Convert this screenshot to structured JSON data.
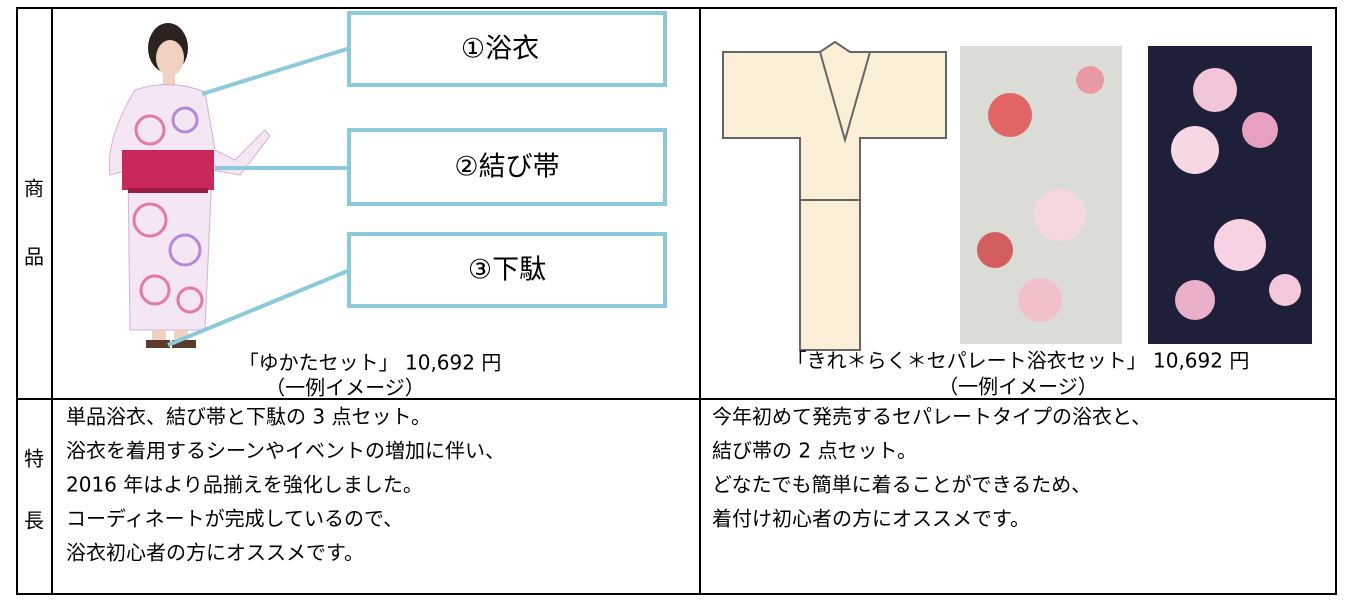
{
  "table": {
    "rows": [
      {
        "header": [
          "商",
          "品"
        ],
        "cells": [
          {
            "callouts": [
              "①浴衣",
              "②結び帯",
              "③下駄"
            ],
            "caption": [
              "「ゆかたセット」 10,692 円",
              "（一例イメージ）"
            ]
          },
          {
            "caption": [
              "「きれ＊らく＊セパレート浴衣セット」 10,692 円",
              "（一例イメージ）"
            ]
          }
        ]
      },
      {
        "header": [
          "特",
          "長"
        ],
        "cells": [
          {
            "lines": [
              "単品浴衣、結び帯と下駄の 3 点セット。",
              "浴衣を着用するシーンやイベントの増加に伴い、",
              "2016 年はより品揃えを強化しました。",
              "コーディネートが完成しているので、",
              "浴衣初心者の方にオススメです。"
            ]
          },
          {
            "lines": [
              "今年初めて発売するセパレートタイプの浴衣と、",
              "結び帯の 2 点セット。",
              "どなたでも簡単に着ることができるため、",
              "着付け初心者の方にオススメです。"
            ]
          }
        ]
      }
    ]
  }
}
